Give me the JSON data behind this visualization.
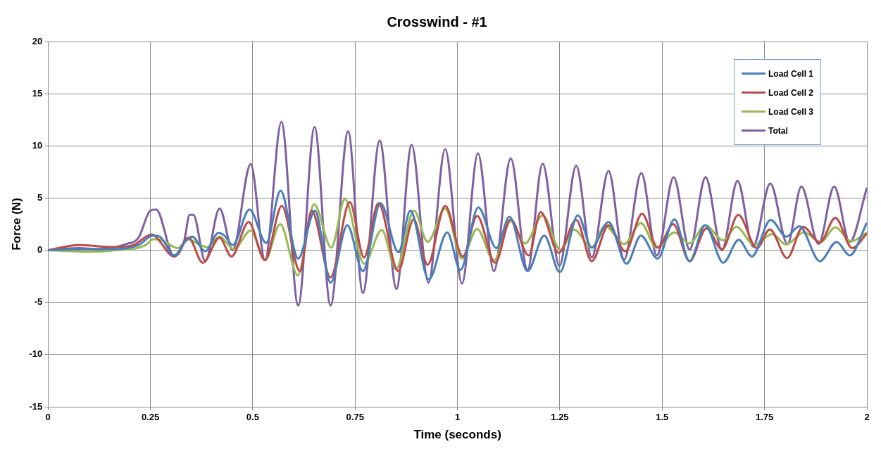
{
  "chart_data": {
    "type": "line",
    "title": "Crosswind - #1",
    "xlabel": "Time (seconds)",
    "ylabel": "Force (N)",
    "xlim": [
      0,
      2
    ],
    "xticks": [
      0,
      0.25,
      0.5,
      0.75,
      1,
      1.25,
      1.5,
      1.75,
      2
    ],
    "ylim": [
      -15,
      20
    ],
    "yticks": [
      -15,
      -10,
      -5,
      0,
      5,
      10,
      15,
      20
    ],
    "grid": true,
    "legend": "top right",
    "marker": "none",
    "line_style": "solid",
    "series": [
      {
        "name": "Load Cell 1",
        "color": "#4a7ebb",
        "x": [
          0,
          0.075,
          0.163,
          0.221,
          0.256,
          0.273,
          0.308,
          0.337,
          0.352,
          0.384,
          0.416,
          0.431,
          0.451,
          0.492,
          0.533,
          0.568,
          0.611,
          0.652,
          0.69,
          0.731,
          0.769,
          0.812,
          0.856,
          0.885,
          0.93,
          0.975,
          1.007,
          1.051,
          1.095,
          1.127,
          1.171,
          1.212,
          1.25,
          1.294,
          1.328,
          1.369,
          1.413,
          1.448,
          1.489,
          1.53,
          1.567,
          1.605,
          1.649,
          1.687,
          1.719,
          1.765,
          1.803,
          1.835,
          1.885,
          1.926,
          1.958,
          2
        ],
        "values": [
          0,
          0.1,
          0.1,
          0.5,
          1.4,
          1.3,
          -0.5,
          0.9,
          1.3,
          -0.1,
          1.65,
          1.4,
          0.5,
          3.9,
          0.7,
          5.7,
          -0.8,
          3.8,
          -3.1,
          2.4,
          -2,
          4.5,
          -0.2,
          3.8,
          -2.8,
          1.7,
          -1.9,
          4.1,
          0.2,
          3.2,
          -2,
          1.4,
          -2.1,
          3.35,
          0.25,
          2.7,
          -1.3,
          1.4,
          -0.8,
          2.95,
          -1.05,
          2.4,
          -1.2,
          1,
          -0.6,
          2.9,
          1.3,
          2.3,
          -1.05,
          0.8,
          -0.5,
          2.65
        ]
      },
      {
        "name": "Load Cell 2",
        "color": "#be4b48",
        "x": [
          0,
          0.075,
          0.163,
          0.209,
          0.253,
          0.308,
          0.343,
          0.378,
          0.419,
          0.448,
          0.49,
          0.53,
          0.571,
          0.615,
          0.644,
          0.69,
          0.737,
          0.772,
          0.807,
          0.855,
          0.893,
          0.927,
          0.97,
          1.013,
          1.048,
          1.092,
          1.13,
          1.174,
          1.203,
          1.247,
          1.29,
          1.328,
          1.369,
          1.41,
          1.451,
          1.489,
          1.527,
          1.567,
          1.608,
          1.646,
          1.686,
          1.731,
          1.763,
          1.805,
          1.844,
          1.885,
          1.923,
          1.964,
          2
        ],
        "values": [
          0,
          0.5,
          0.3,
          0.5,
          1.5,
          -0.6,
          1.2,
          -1.2,
          1.2,
          -0.6,
          2.7,
          -0.95,
          4.25,
          -2,
          3.8,
          -2.6,
          4.6,
          -0.7,
          4.5,
          -2,
          2.95,
          -1.4,
          4.25,
          -0.6,
          3.3,
          -1.2,
          2.95,
          -0.5,
          3.65,
          -0.25,
          2.9,
          -1.05,
          2.4,
          -0.1,
          3.5,
          0.25,
          2.5,
          -1.05,
          2.1,
          0.1,
          3.4,
          0.2,
          2,
          -0.75,
          2.25,
          0.75,
          3.1,
          0.2,
          1.6
        ]
      },
      {
        "name": "Load Cell 3",
        "color": "#98b954",
        "x": [
          0,
          0.105,
          0.163,
          0.239,
          0.256,
          0.279,
          0.317,
          0.343,
          0.367,
          0.39,
          0.419,
          0.454,
          0.495,
          0.53,
          0.567,
          0.61,
          0.65,
          0.692,
          0.725,
          0.772,
          0.815,
          0.85,
          0.894,
          0.927,
          0.97,
          1.011,
          1.048,
          1.089,
          1.13,
          1.165,
          1.208,
          1.252,
          1.284,
          1.328,
          1.36,
          1.407,
          1.448,
          1.486,
          1.53,
          1.567,
          1.605,
          1.649,
          1.681,
          1.725,
          1.769,
          1.802,
          1.846,
          1.887,
          1.923,
          1.961,
          2
        ],
        "values": [
          0,
          -0.15,
          0,
          0.5,
          1.05,
          0.95,
          0.2,
          1.05,
          0.6,
          0.3,
          1.3,
          0.1,
          1.9,
          -0.95,
          2.5,
          -2.4,
          4.4,
          0.25,
          4.9,
          -1.3,
          1.95,
          -1.8,
          3.8,
          0.8,
          4,
          -0.8,
          2.05,
          -1,
          2.8,
          0.65,
          3.35,
          0,
          2,
          0.25,
          2.35,
          0.6,
          2.6,
          0.25,
          1.7,
          0.65,
          2.4,
          0.95,
          2.25,
          0.5,
          1.55,
          0.55,
          1.7,
          0.8,
          2.2,
          0.85,
          1.7
        ]
      },
      {
        "name": "Total",
        "color": "#7d60a0",
        "x": [
          0,
          0.075,
          0.122,
          0.192,
          0.221,
          0.25,
          0.264,
          0.308,
          0.332,
          0.346,
          0.355,
          0.384,
          0.419,
          0.451,
          0.495,
          0.53,
          0.57,
          0.611,
          0.651,
          0.69,
          0.733,
          0.769,
          0.81,
          0.851,
          0.888,
          0.929,
          0.97,
          1.011,
          1.05,
          1.089,
          1.13,
          1.171,
          1.208,
          1.249,
          1.29,
          1.328,
          1.369,
          1.407,
          1.449,
          1.487,
          1.528,
          1.567,
          1.606,
          1.646,
          1.684,
          1.722,
          1.764,
          1.806,
          1.84,
          1.882,
          1.92,
          1.958,
          2
        ],
        "values": [
          0,
          0.2,
          0.1,
          0.6,
          1.2,
          3.8,
          3.9,
          -0.6,
          0.8,
          3.4,
          3.4,
          -1.05,
          4,
          0,
          8.25,
          -0.95,
          12.3,
          -5.3,
          11.8,
          -5.3,
          11.4,
          -4.1,
          10.5,
          -3.7,
          10.1,
          -3.1,
          9.7,
          -3.2,
          9.3,
          -2,
          8.8,
          -1.9,
          8.3,
          -1.5,
          8.1,
          -0.7,
          7.6,
          -0.9,
          7.4,
          -0.5,
          7,
          0.05,
          7,
          0,
          6.65,
          0.35,
          6.4,
          0.6,
          6.1,
          0.6,
          6.1,
          0.8,
          6
        ]
      }
    ]
  }
}
